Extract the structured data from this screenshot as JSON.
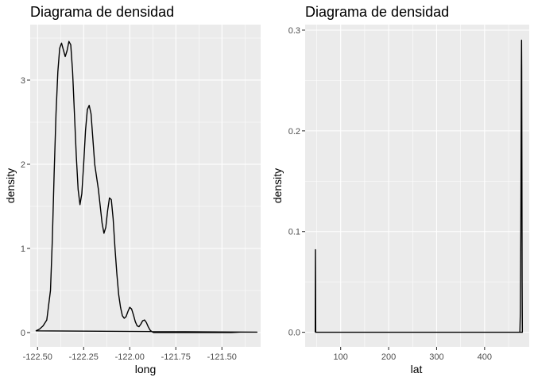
{
  "chart_data": [
    {
      "type": "line",
      "title": "Diagrama de densidad",
      "xlabel": "long",
      "ylabel": "density",
      "xlim": [
        -122.54,
        -121.29
      ],
      "ylim": [
        -0.17,
        3.66
      ],
      "grid": true,
      "xticks": [
        -122.5,
        -122.25,
        -122.0,
        -121.75,
        -121.5
      ],
      "xtick_labels": [
        "-122.50",
        "-122.25",
        "-122.00",
        "-121.75",
        "-121.50"
      ],
      "yticks": [
        0,
        1,
        2,
        3
      ],
      "ytick_labels": [
        "0",
        "1",
        "2",
        "3"
      ],
      "series": [
        {
          "x": [
            -122.51,
            -122.49,
            -122.47,
            -122.45,
            -122.43,
            -122.42,
            -122.41,
            -122.4,
            -122.39,
            -122.38,
            -122.37,
            -122.36,
            -122.35,
            -122.34,
            -122.33,
            -122.32,
            -122.31,
            -122.3,
            -122.29,
            -122.28,
            -122.27,
            -122.26,
            -122.25,
            -122.24,
            -122.23,
            -122.22,
            -122.21,
            -122.2,
            -122.19,
            -122.18,
            -122.17,
            -122.16,
            -122.15,
            -122.14,
            -122.13,
            -122.12,
            -122.11,
            -122.1,
            -122.09,
            -122.08,
            -122.07,
            -122.06,
            -122.05,
            -122.04,
            -122.03,
            -122.02,
            -122.01,
            -122.0,
            -121.99,
            -121.98,
            -121.97,
            -121.96,
            -121.95,
            -121.94,
            -121.93,
            -121.92,
            -121.91,
            -121.9,
            -121.89,
            -121.88,
            -121.87,
            -121.86,
            -121.85,
            -121.84,
            -121.83,
            -121.82,
            -121.81,
            -121.8,
            -121.79,
            -121.78,
            -121.77,
            -121.76,
            -121.75,
            -121.74,
            -121.73,
            -121.72,
            -121.7,
            -121.65,
            -121.6,
            -121.55,
            -121.5,
            -121.45,
            -121.4,
            -121.35,
            -121.31
          ],
          "y": [
            0.02,
            0.04,
            0.08,
            0.15,
            0.5,
            1.1,
            1.9,
            2.6,
            3.1,
            3.38,
            3.44,
            3.36,
            3.28,
            3.35,
            3.46,
            3.42,
            3.1,
            2.6,
            2.1,
            1.7,
            1.52,
            1.65,
            2.0,
            2.4,
            2.65,
            2.7,
            2.6,
            2.3,
            2.0,
            1.85,
            1.7,
            1.5,
            1.3,
            1.18,
            1.25,
            1.45,
            1.6,
            1.58,
            1.35,
            1.0,
            0.7,
            0.45,
            0.3,
            0.2,
            0.17,
            0.19,
            0.25,
            0.3,
            0.28,
            0.21,
            0.13,
            0.08,
            0.07,
            0.1,
            0.14,
            0.15,
            0.12,
            0.07,
            0.03,
            0.01,
            0.0,
            0.0,
            0.0,
            0.0,
            0.0,
            0.0,
            0.0,
            0.0,
            0.0,
            0.0,
            0.0,
            0.0,
            0.0,
            0.0,
            0.0,
            0.0,
            0.0,
            0.0,
            0.0,
            0.0,
            0.0,
            0.0,
            0.005,
            0.005,
            0.005
          ]
        }
      ]
    },
    {
      "type": "line",
      "title": "Diagrama de densidad",
      "xlabel": "lat",
      "ylabel": "density",
      "xlim": [
        26,
        493
      ],
      "ylim": [
        -0.0145,
        0.3055
      ],
      "grid": true,
      "xticks": [
        100,
        200,
        300,
        400
      ],
      "xtick_labels": [
        "100",
        "200",
        "300",
        "400"
      ],
      "yticks": [
        0.0,
        0.1,
        0.2,
        0.3
      ],
      "ytick_labels": [
        "0.0",
        "0.1",
        "0.2",
        "0.3"
      ],
      "series": [
        {
          "x": [
            47.0,
            47.3,
            47.5,
            47.8,
            48.1,
            50,
            100,
            200,
            300,
            400,
            470,
            473.5,
            474.5,
            475.5,
            476.2,
            476.6,
            477.0,
            477.3,
            477.8,
            478.2,
            478.7
          ],
          "y": [
            0.0,
            0.05,
            0.082,
            0.05,
            0.0,
            0.0,
            0.0,
            0.0,
            0.0,
            0.0,
            0.0,
            0.0,
            0.02,
            0.1,
            0.2,
            0.26,
            0.29,
            0.26,
            0.15,
            0.05,
            0.0
          ]
        }
      ]
    }
  ]
}
